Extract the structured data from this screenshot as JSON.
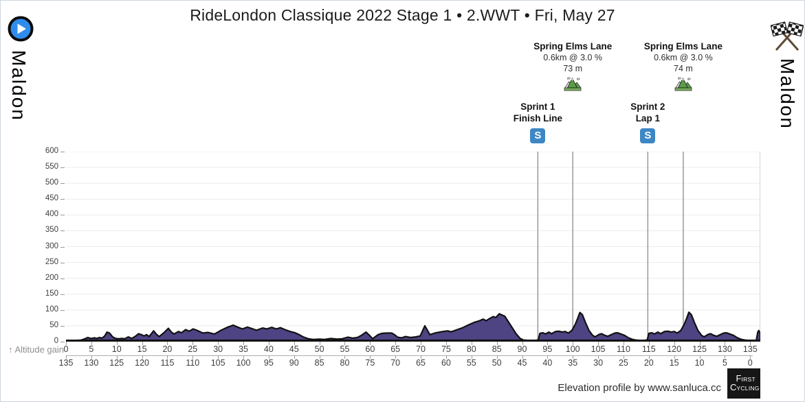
{
  "title": "RideLondon Classique 2022 Stage 1 • 2.WWT • Fri, May 27",
  "start_label": "Maldon",
  "finish_label": "Maldon",
  "axis_note": "↑ Altitude gain",
  "footer": {
    "credit": "Elevation profile by www.sanluca.cc",
    "logo_line1_big": "F",
    "logo_line1_small": "IRST",
    "logo_line2_big": "C",
    "logo_line2_small": "YCLING"
  },
  "colors": {
    "profile_fill": "#4e4383",
    "profile_stroke": "#111111",
    "grid": "#ececec",
    "marker_line": "#999999",
    "sprint_blue": "#3d87c5",
    "start_blue": "#2f8cec",
    "plot_border": "#d6d6d6"
  },
  "chart_data": {
    "type": "area",
    "x_unit": "km",
    "y_unit": "m",
    "xlim": [
      0,
      137
    ],
    "ylim": [
      0,
      600
    ],
    "y_ticks": [
      0,
      50,
      100,
      150,
      200,
      250,
      300,
      350,
      400,
      450,
      500,
      550,
      600
    ],
    "x_ticks_distance": [
      0,
      5,
      10,
      15,
      20,
      25,
      30,
      35,
      40,
      45,
      50,
      55,
      60,
      65,
      70,
      75,
      80,
      85,
      90,
      95,
      100,
      105,
      110,
      115,
      120,
      125,
      130,
      135
    ],
    "x_ticks_remaining": [
      135,
      130,
      125,
      120,
      115,
      110,
      105,
      100,
      95,
      90,
      85,
      80,
      75,
      70,
      65,
      60,
      55,
      50,
      45,
      40,
      35,
      30,
      25,
      20,
      15,
      10,
      5,
      0
    ],
    "profile": [
      [
        0,
        2
      ],
      [
        1,
        3
      ],
      [
        2,
        4
      ],
      [
        3,
        5
      ],
      [
        3.6,
        8
      ],
      [
        4.3,
        13
      ],
      [
        5,
        10
      ],
      [
        5.6,
        12
      ],
      [
        6.1,
        10
      ],
      [
        6.6,
        13
      ],
      [
        7.1,
        11
      ],
      [
        7.6,
        17
      ],
      [
        8.1,
        30
      ],
      [
        8.6,
        27
      ],
      [
        9.2,
        15
      ],
      [
        9.8,
        10
      ],
      [
        10.4,
        9
      ],
      [
        11,
        10
      ],
      [
        11.6,
        9
      ],
      [
        12.3,
        15
      ],
      [
        13,
        10
      ],
      [
        13.8,
        18
      ],
      [
        14.3,
        25
      ],
      [
        14.9,
        22
      ],
      [
        15.4,
        18
      ],
      [
        15.9,
        22
      ],
      [
        16.4,
        16
      ],
      [
        17.3,
        34
      ],
      [
        17.9,
        22
      ],
      [
        18.4,
        16
      ],
      [
        19.3,
        28
      ],
      [
        20.2,
        42
      ],
      [
        20.8,
        30
      ],
      [
        21.3,
        24
      ],
      [
        22.2,
        32
      ],
      [
        22.8,
        28
      ],
      [
        23.6,
        38
      ],
      [
        24.3,
        33
      ],
      [
        25.1,
        40
      ],
      [
        25.8,
        36
      ],
      [
        27,
        27
      ],
      [
        28,
        29
      ],
      [
        29.3,
        24
      ],
      [
        30.5,
        35
      ],
      [
        31.8,
        45
      ],
      [
        33,
        52
      ],
      [
        34,
        45
      ],
      [
        34.8,
        40
      ],
      [
        35.8,
        46
      ],
      [
        36.5,
        42
      ],
      [
        37.6,
        36
      ],
      [
        38.8,
        43
      ],
      [
        39.6,
        40
      ],
      [
        40.6,
        45
      ],
      [
        41.5,
        40
      ],
      [
        42.3,
        44
      ],
      [
        43.2,
        38
      ],
      [
        44.2,
        32
      ],
      [
        45.2,
        28
      ],
      [
        46,
        22
      ],
      [
        46.8,
        15
      ],
      [
        47.8,
        9
      ],
      [
        48.8,
        7
      ],
      [
        50,
        8
      ],
      [
        51,
        7
      ],
      [
        52.2,
        10
      ],
      [
        53.5,
        8
      ],
      [
        54.5,
        9
      ],
      [
        55.6,
        14
      ],
      [
        56.6,
        11
      ],
      [
        57.5,
        13
      ],
      [
        58.3,
        20
      ],
      [
        59.2,
        30
      ],
      [
        60,
        18
      ],
      [
        60.5,
        9
      ],
      [
        61.6,
        22
      ],
      [
        62.3,
        26
      ],
      [
        63.2,
        27
      ],
      [
        64.3,
        27
      ],
      [
        65,
        20
      ],
      [
        65.4,
        14
      ],
      [
        66.2,
        12
      ],
      [
        67,
        16
      ],
      [
        68,
        13
      ],
      [
        69,
        15
      ],
      [
        69.9,
        18
      ],
      [
        70.8,
        50
      ],
      [
        71.8,
        22
      ],
      [
        73,
        28
      ],
      [
        74,
        31
      ],
      [
        75.3,
        34
      ],
      [
        76,
        31
      ],
      [
        77.2,
        38
      ],
      [
        78.3,
        44
      ],
      [
        79.3,
        52
      ],
      [
        80.6,
        61
      ],
      [
        81.6,
        66
      ],
      [
        82.3,
        71
      ],
      [
        82.9,
        66
      ],
      [
        83.6,
        73
      ],
      [
        84.3,
        79
      ],
      [
        84.8,
        76
      ],
      [
        85.5,
        88
      ],
      [
        86.6,
        80
      ],
      [
        87.6,
        55
      ],
      [
        88.8,
        25
      ],
      [
        89.6,
        10
      ],
      [
        90.3,
        5
      ],
      [
        91.5,
        4
      ],
      [
        92.8,
        4
      ],
      [
        93.2,
        6
      ],
      [
        93.5,
        26
      ],
      [
        94.1,
        28
      ],
      [
        94.6,
        24
      ],
      [
        95.3,
        30
      ],
      [
        95.8,
        25
      ],
      [
        96.6,
        32
      ],
      [
        97.3,
        33
      ],
      [
        97.9,
        30
      ],
      [
        98.5,
        32
      ],
      [
        99.1,
        27
      ],
      [
        99.8,
        35
      ],
      [
        100.5,
        55
      ],
      [
        101,
        75
      ],
      [
        101.4,
        92
      ],
      [
        101.9,
        85
      ],
      [
        102.5,
        60
      ],
      [
        103.2,
        35
      ],
      [
        103.9,
        20
      ],
      [
        104.4,
        15
      ],
      [
        105.2,
        23
      ],
      [
        105.7,
        25
      ],
      [
        106.3,
        20
      ],
      [
        106.9,
        17
      ],
      [
        107.6,
        22
      ],
      [
        108.3,
        27
      ],
      [
        108.8,
        28
      ],
      [
        109.5,
        24
      ],
      [
        110.2,
        20
      ],
      [
        111,
        12
      ],
      [
        111.8,
        7
      ],
      [
        112.5,
        5
      ],
      [
        113.3,
        4
      ],
      [
        114.2,
        4
      ],
      [
        114.7,
        6
      ],
      [
        115,
        26
      ],
      [
        115.6,
        28
      ],
      [
        116.1,
        24
      ],
      [
        116.8,
        30
      ],
      [
        117.3,
        25
      ],
      [
        118.1,
        32
      ],
      [
        118.8,
        33
      ],
      [
        119.4,
        30
      ],
      [
        120,
        32
      ],
      [
        120.6,
        27
      ],
      [
        121.3,
        35
      ],
      [
        122,
        55
      ],
      [
        122.5,
        75
      ],
      [
        122.9,
        93
      ],
      [
        123.4,
        85
      ],
      [
        124,
        60
      ],
      [
        124.7,
        35
      ],
      [
        125.4,
        20
      ],
      [
        125.9,
        15
      ],
      [
        126.7,
        23
      ],
      [
        127.2,
        25
      ],
      [
        127.8,
        20
      ],
      [
        128.4,
        17
      ],
      [
        129.1,
        22
      ],
      [
        129.8,
        27
      ],
      [
        130.3,
        28
      ],
      [
        131,
        24
      ],
      [
        131.7,
        20
      ],
      [
        132.5,
        12
      ],
      [
        133.3,
        7
      ],
      [
        134,
        5
      ],
      [
        134.8,
        4
      ],
      [
        135.6,
        3
      ],
      [
        136.2,
        4
      ],
      [
        136.5,
        30
      ],
      [
        136.7,
        35
      ],
      [
        136.9,
        28
      ],
      [
        137,
        28
      ]
    ],
    "markers": {
      "climbs": [
        {
          "name": "Spring Elms Lane",
          "detail": "0.6km @ 3.0 %",
          "summit": "73 m",
          "km": 100.0
        },
        {
          "name": "Spring Elms Lane",
          "detail": "0.6km @ 3.0 %",
          "summit": "74 m",
          "km": 121.8
        }
      ],
      "sprints": [
        {
          "name": "Sprint 1",
          "detail": "Finish Line",
          "icon": "S",
          "km": 93.1
        },
        {
          "name": "Sprint 2",
          "detail": "Lap 1",
          "icon": "S",
          "km": 114.8
        }
      ]
    }
  }
}
